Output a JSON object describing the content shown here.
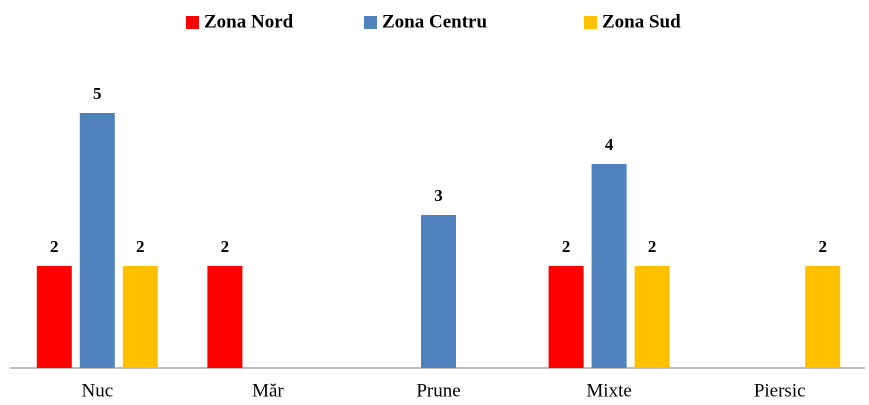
{
  "chart_data": {
    "type": "bar",
    "categories": [
      "Nuc",
      "Măr",
      "Prune",
      "Mixte",
      "Piersic"
    ],
    "series": [
      {
        "name": "Zona Nord",
        "color": "#ff0000",
        "values": [
          2,
          2,
          null,
          2,
          null
        ]
      },
      {
        "name": "Zona Centru",
        "color": "#4f81bd",
        "values": [
          5,
          null,
          3,
          4,
          null
        ]
      },
      {
        "name": "Zona Sud",
        "color": "#ffc000",
        "values": [
          2,
          null,
          null,
          2,
          2
        ]
      }
    ],
    "ylim": [
      0,
      6
    ],
    "legend": "top"
  }
}
